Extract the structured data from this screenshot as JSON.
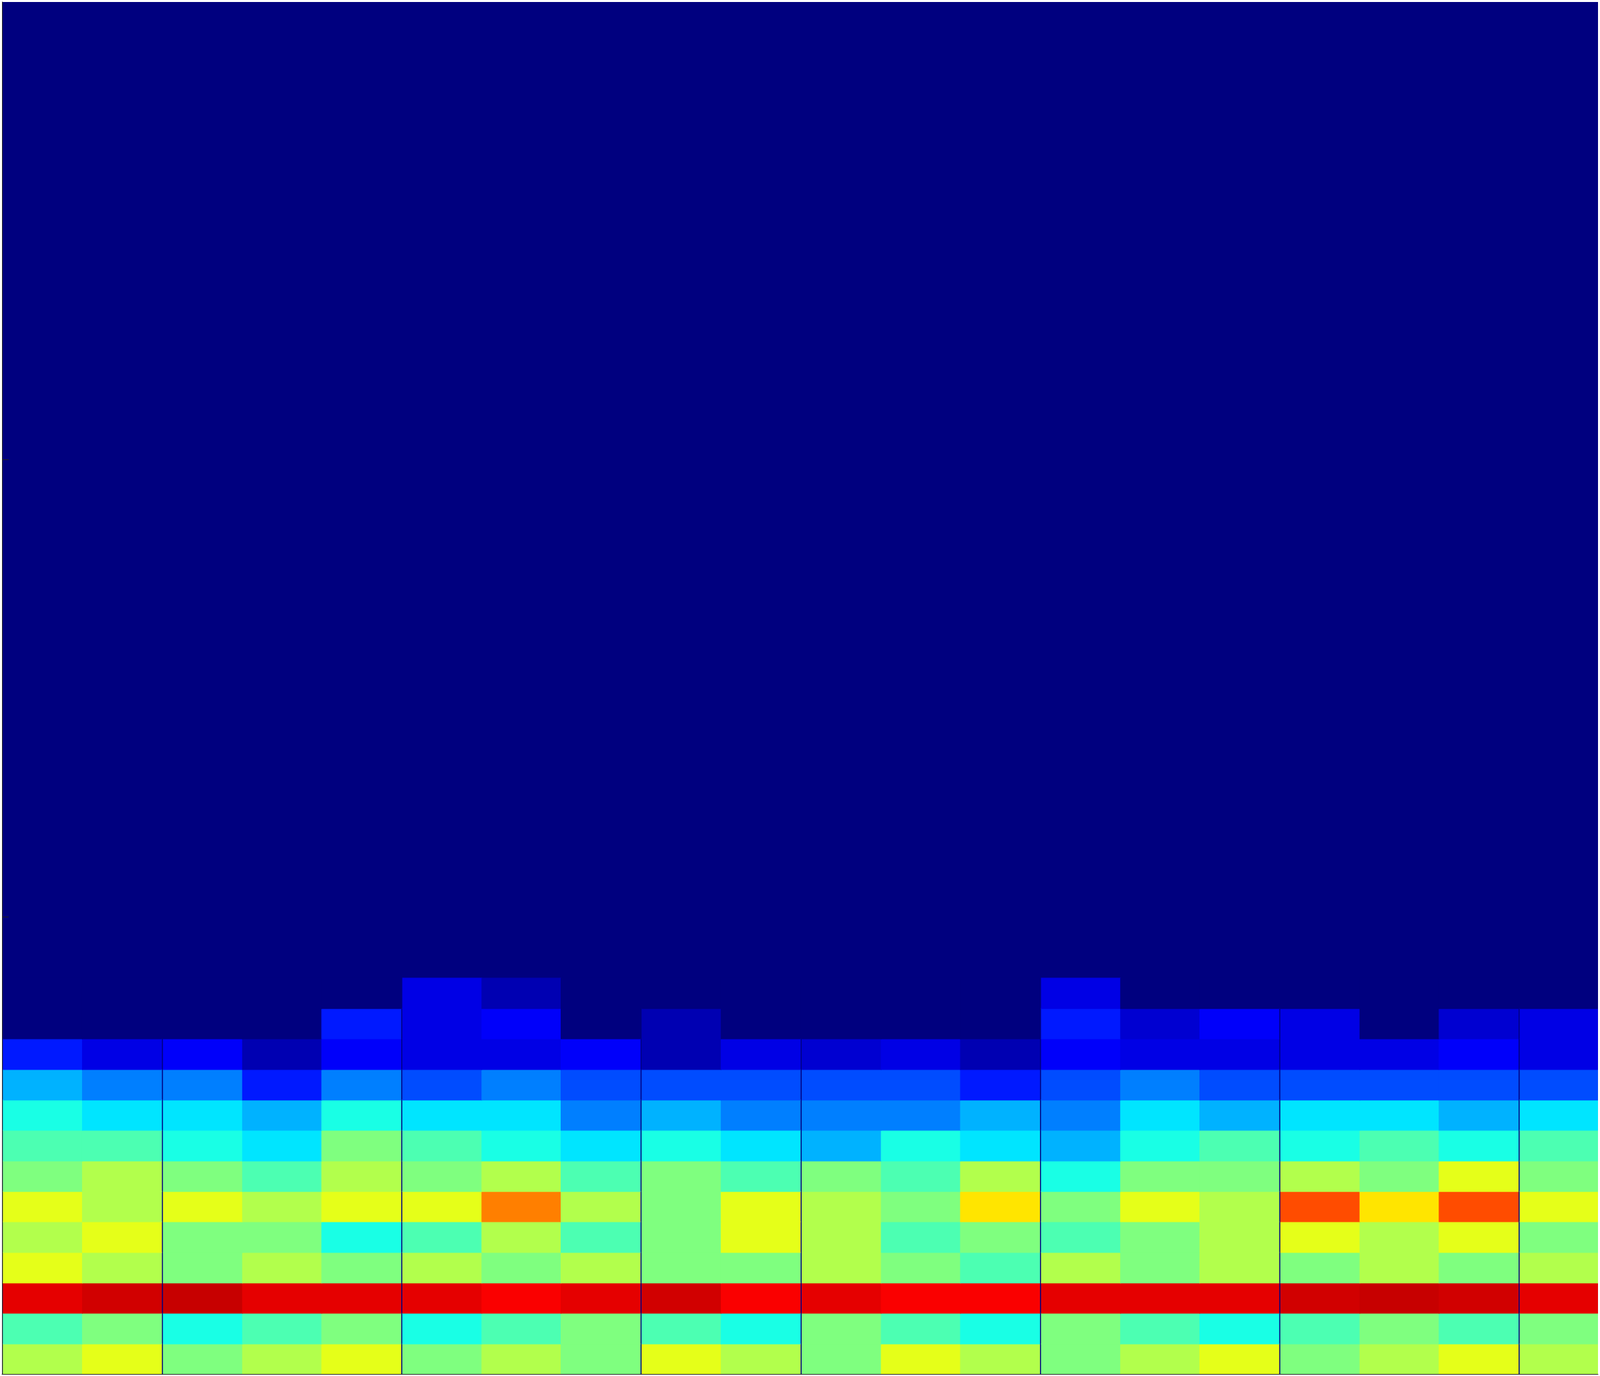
{
  "chart_data": {
    "type": "heatmap",
    "x": [
      0.47,
      0.94,
      1.42,
      1.89,
      2.36,
      2.84,
      3.31,
      3.78,
      4.26,
      4.73,
      5.21,
      5.68,
      6.15,
      6.63,
      7.1,
      7.57,
      8.05,
      8.52,
      8.99,
      9.47
    ],
    "y": [
      0.033,
      0.1,
      0.167,
      0.233,
      0.3,
      0.367,
      0.433,
      0.5,
      0.567,
      0.633,
      0.7,
      0.767,
      0.833
    ],
    "values": [
      [
        0.55,
        0.6,
        0.5,
        0.55,
        0.6,
        0.5,
        0.55,
        0.5,
        0.6,
        0.55,
        0.5,
        0.6,
        0.55,
        0.5,
        0.55,
        0.6,
        0.5,
        0.55,
        0.6,
        0.55
      ],
      [
        0.45,
        0.5,
        0.4,
        0.45,
        0.5,
        0.4,
        0.45,
        0.5,
        0.45,
        0.4,
        0.5,
        0.45,
        0.4,
        0.5,
        0.45,
        0.4,
        0.45,
        0.5,
        0.45,
        0.5
      ],
      [
        0.9,
        0.92,
        0.93,
        0.9,
        0.9,
        0.9,
        0.88,
        0.9,
        0.92,
        0.88,
        0.9,
        0.88,
        0.88,
        0.9,
        0.9,
        0.9,
        0.92,
        0.93,
        0.92,
        0.9
      ],
      [
        0.6,
        0.55,
        0.5,
        0.55,
        0.5,
        0.55,
        0.5,
        0.55,
        0.5,
        0.5,
        0.55,
        0.5,
        0.45,
        0.55,
        0.5,
        0.55,
        0.5,
        0.55,
        0.5,
        0.55
      ],
      [
        0.55,
        0.6,
        0.5,
        0.5,
        0.4,
        0.45,
        0.55,
        0.45,
        0.5,
        0.6,
        0.55,
        0.45,
        0.5,
        0.45,
        0.5,
        0.55,
        0.6,
        0.55,
        0.6,
        0.5
      ],
      [
        0.6,
        0.55,
        0.6,
        0.55,
        0.6,
        0.6,
        0.75,
        0.55,
        0.5,
        0.6,
        0.55,
        0.5,
        0.65,
        0.5,
        0.6,
        0.55,
        0.8,
        0.65,
        0.8,
        0.6
      ],
      [
        0.5,
        0.55,
        0.5,
        0.45,
        0.55,
        0.5,
        0.55,
        0.45,
        0.5,
        0.45,
        0.5,
        0.45,
        0.55,
        0.4,
        0.5,
        0.5,
        0.55,
        0.5,
        0.6,
        0.5
      ],
      [
        0.45,
        0.45,
        0.4,
        0.35,
        0.5,
        0.45,
        0.4,
        0.35,
        0.4,
        0.35,
        0.3,
        0.4,
        0.35,
        0.3,
        0.4,
        0.45,
        0.4,
        0.45,
        0.4,
        0.45
      ],
      [
        0.4,
        0.35,
        0.35,
        0.3,
        0.4,
        0.35,
        0.35,
        0.25,
        0.3,
        0.25,
        0.25,
        0.25,
        0.3,
        0.25,
        0.35,
        0.3,
        0.35,
        0.35,
        0.3,
        0.35
      ],
      [
        0.3,
        0.25,
        0.25,
        0.15,
        0.25,
        0.2,
        0.25,
        0.2,
        0.2,
        0.2,
        0.2,
        0.2,
        0.15,
        0.2,
        0.25,
        0.2,
        0.2,
        0.2,
        0.2,
        0.2
      ],
      [
        0.15,
        0.1,
        0.12,
        0.05,
        0.12,
        0.1,
        0.1,
        0.12,
        0.05,
        0.1,
        0.08,
        0.1,
        0.05,
        0.12,
        0.1,
        0.1,
        0.1,
        0.1,
        0.12,
        0.1
      ],
      [
        0,
        0,
        0,
        0,
        0.15,
        0.1,
        0.12,
        0,
        0.05,
        0,
        0,
        0,
        0,
        0.15,
        0.08,
        0.12,
        0.1,
        0,
        0.08,
        0.1
      ],
      [
        0,
        0,
        0,
        0,
        0,
        0.1,
        0.05,
        0,
        0,
        0,
        0,
        0,
        0,
        0.1,
        0,
        0,
        0,
        0,
        0,
        0
      ]
    ],
    "zlim": [
      0,
      1
    ],
    "xlim": [
      0.23,
      9.7
    ],
    "xticks": [
      1,
      2,
      3,
      4,
      5,
      6,
      7,
      8,
      9
    ],
    "ylim": [
      0,
      3
    ],
    "yticks": [
      1,
      2
    ],
    "tick_labels": false
  }
}
